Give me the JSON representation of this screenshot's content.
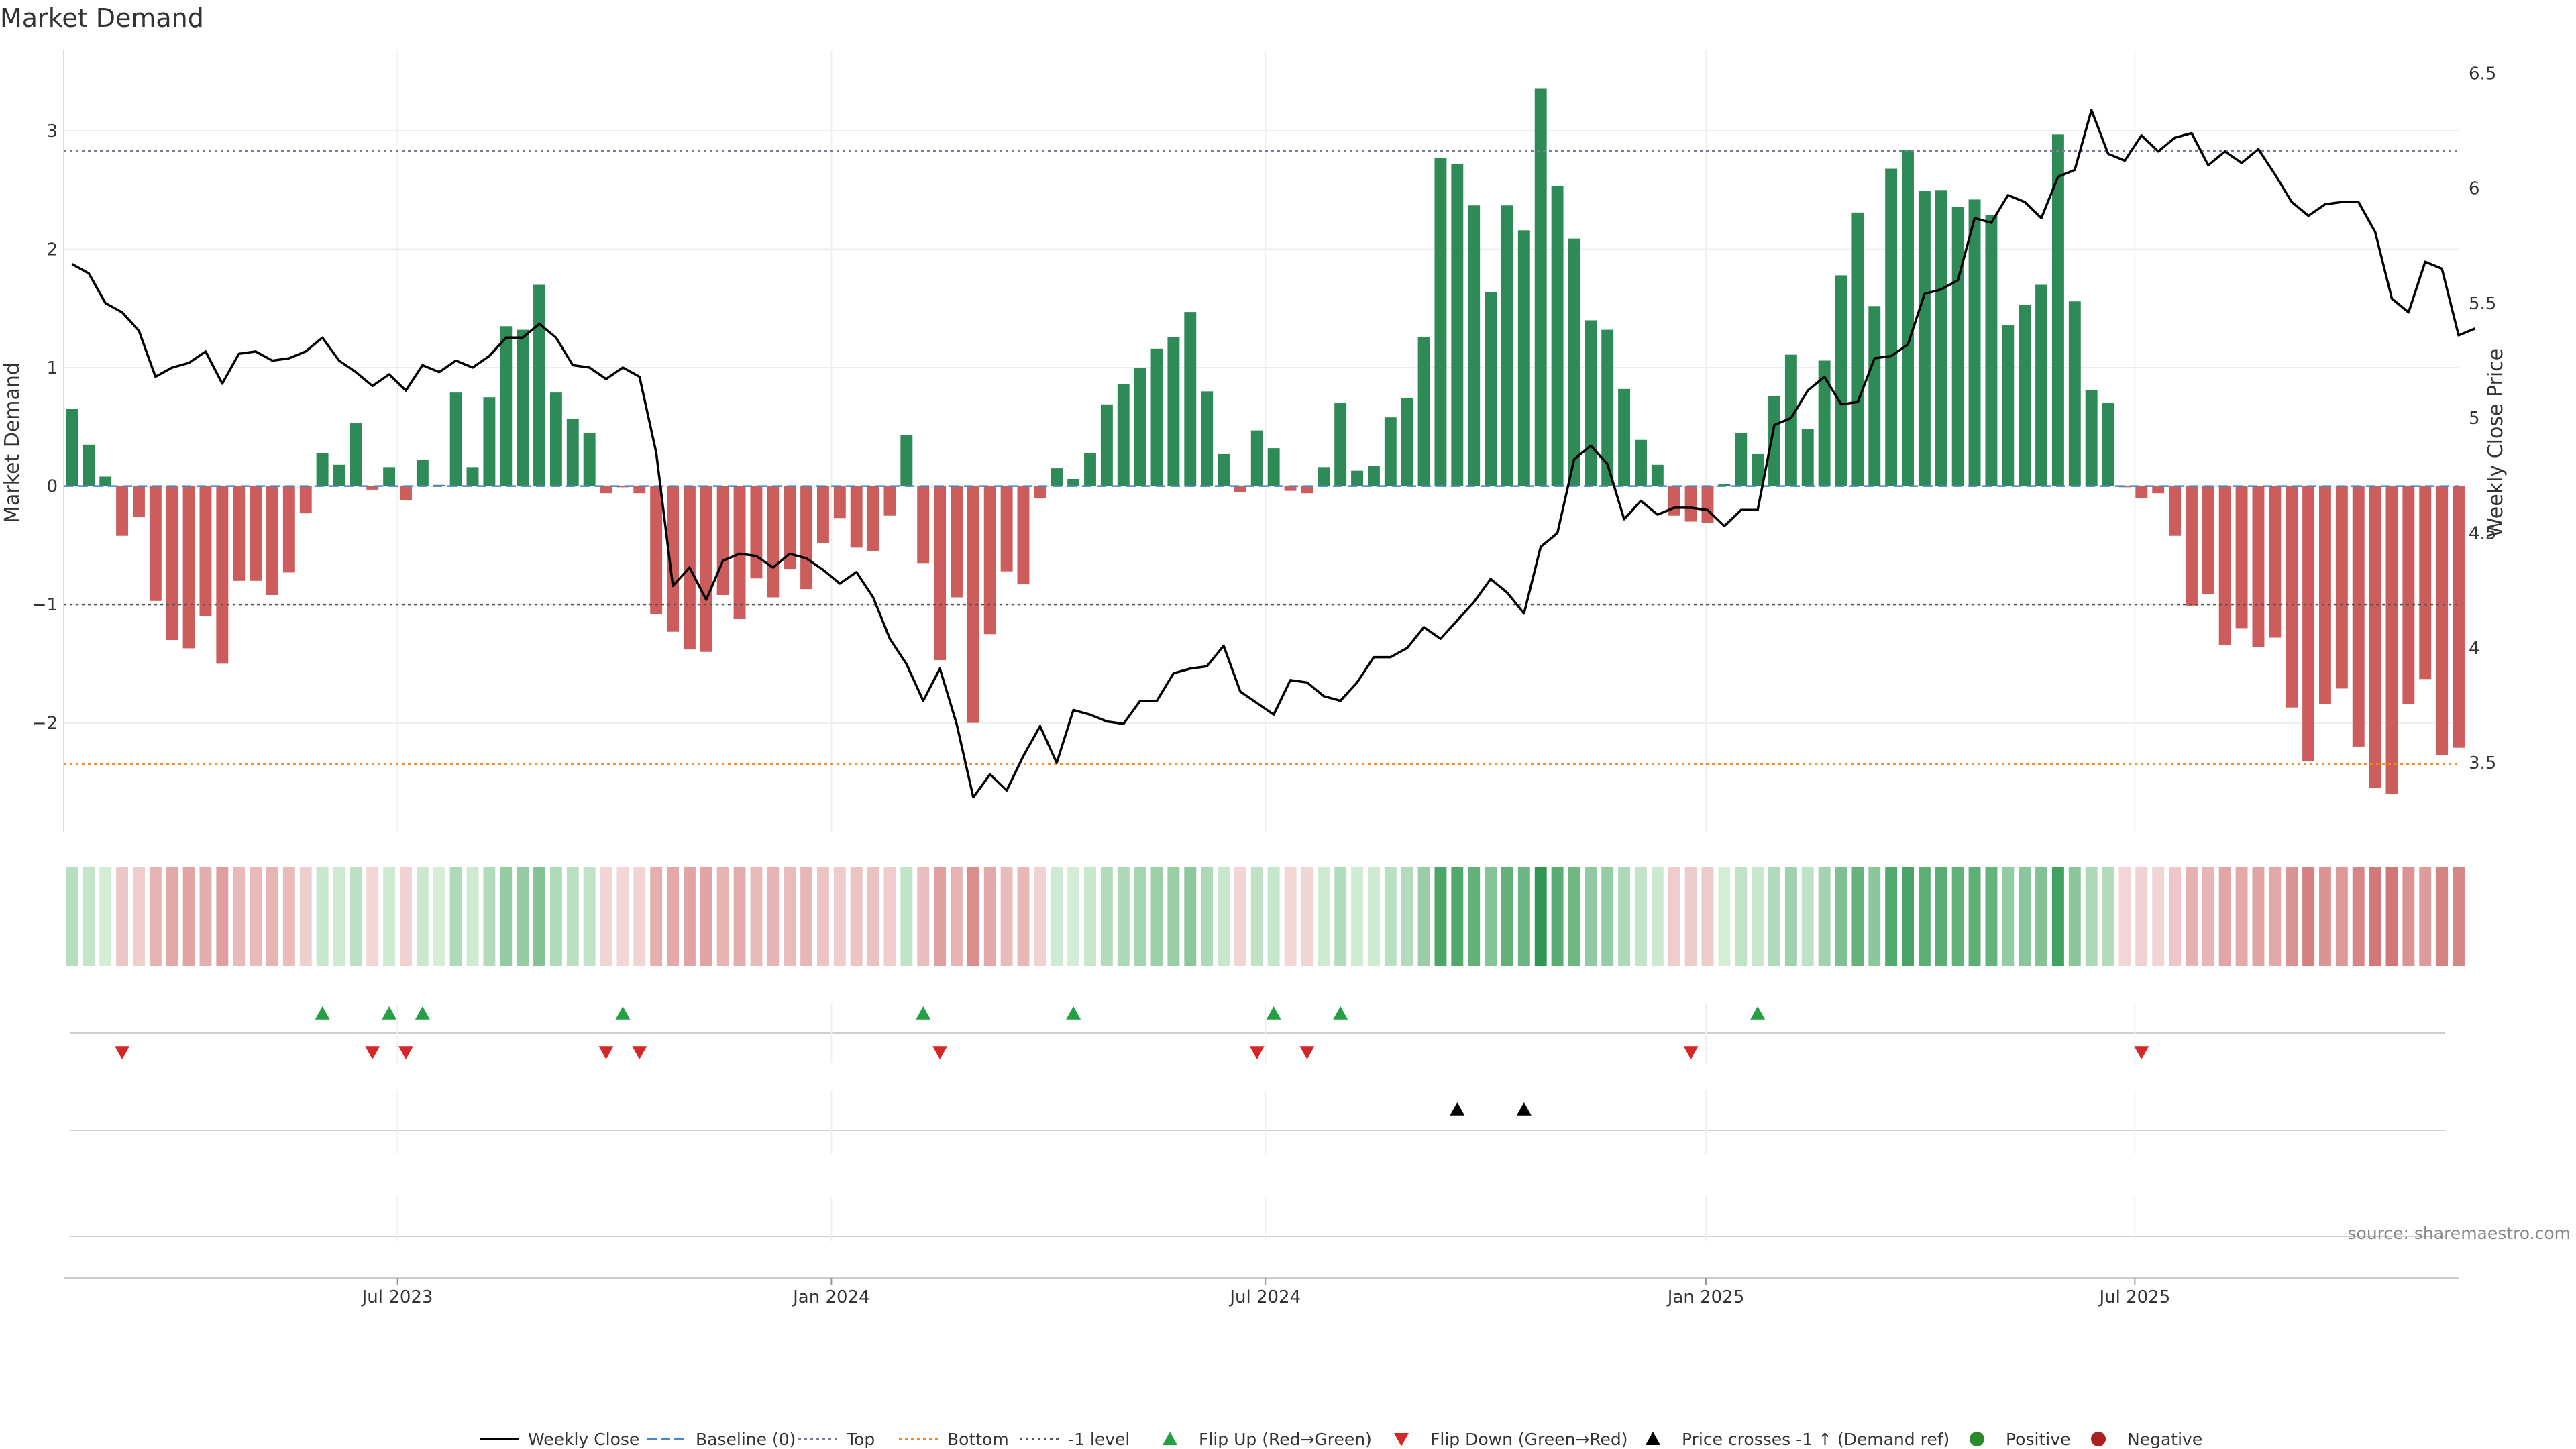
{
  "chart_data": {
    "type": "bar",
    "title": "Market Demand",
    "ylabel_left": "Market Demand",
    "ylabel_right": "Weekly Close Price",
    "source": "source: sharemaestro.com",
    "ylim_left": [
      -2.92,
      3.68
    ],
    "ylim_right": [
      3.2,
      6.6
    ],
    "yticks_left": [
      {
        "v": 3,
        "label": "3"
      },
      {
        "v": 2,
        "label": "2"
      },
      {
        "v": 1,
        "label": "1"
      },
      {
        "v": 0,
        "label": "0"
      },
      {
        "v": -1,
        "label": "−1"
      },
      {
        "v": -2,
        "label": "−2"
      }
    ],
    "yticks_right": [
      {
        "v": 6.5,
        "label": "6.5"
      },
      {
        "v": 6,
        "label": "6"
      },
      {
        "v": 5.5,
        "label": "5.5"
      },
      {
        "v": 5,
        "label": "5"
      },
      {
        "v": 4.5,
        "label": "4.5"
      },
      {
        "v": 4,
        "label": "4"
      },
      {
        "v": 3.5,
        "label": "3.5"
      }
    ],
    "x_start": 0,
    "x_end": 143.5,
    "xticks": [
      {
        "week": 20,
        "label": "Jul 2023"
      },
      {
        "week": 46,
        "label": "Jan 2024"
      },
      {
        "week": 72,
        "label": "Jul 2024"
      },
      {
        "week": 98.4,
        "label": "Jan 2025"
      },
      {
        "week": 124.1,
        "label": "Jul 2025"
      }
    ],
    "reference_lines": [
      {
        "name": "Top",
        "value": 2.83,
        "color": "#7a7a9a",
        "dash": "dotted"
      },
      {
        "name": "Bottom",
        "value": -2.35,
        "color": "#f08a24",
        "dash": "dotted"
      },
      {
        "name": "-1 level",
        "value": -1,
        "color": "#555555",
        "dash": "dotted"
      },
      {
        "name": "Baseline (0)",
        "value": 0,
        "color": "#4a86c5",
        "dash": "dashed"
      }
    ],
    "colors": {
      "positive": "#2e8b57",
      "negative": "#cd5c5c",
      "price": "#000000",
      "flip_up": "#23a043",
      "flip_down": "#d62728",
      "cross": "#000000"
    },
    "demand": [
      0.65,
      0.35,
      0.08,
      -0.42,
      -0.26,
      -0.97,
      -1.3,
      -1.37,
      -1.1,
      -1.5,
      -0.8,
      -0.8,
      -0.92,
      -0.73,
      -0.23,
      0.28,
      0.18,
      0.53,
      -0.03,
      0.16,
      -0.12,
      0.22,
      0.01,
      0.79,
      0.16,
      0.75,
      1.35,
      1.32,
      1.7,
      0.79,
      0.57,
      0.45,
      -0.06,
      -0.01,
      -0.06,
      -1.08,
      -1.23,
      -1.38,
      -1.4,
      -0.92,
      -1.12,
      -0.78,
      -0.94,
      -0.7,
      -0.87,
      -0.48,
      -0.27,
      -0.52,
      -0.55,
      -0.25,
      0.43,
      -0.65,
      -1.47,
      -0.94,
      -2.0,
      -1.25,
      -0.72,
      -0.83,
      -0.1,
      0.15,
      0.06,
      0.28,
      0.69,
      0.86,
      1.0,
      1.16,
      1.26,
      1.47,
      0.8,
      0.27,
      -0.05,
      0.47,
      0.32,
      -0.04,
      -0.06,
      0.16,
      0.7,
      0.13,
      0.17,
      0.58,
      0.74,
      1.26,
      2.77,
      2.72,
      2.37,
      1.64,
      2.37,
      2.16,
      3.36,
      2.53,
      2.09,
      1.4,
      1.32,
      0.82,
      0.39,
      0.18,
      -0.25,
      -0.3,
      -0.31,
      0.02,
      0.45,
      0.27,
      0.76,
      1.11,
      0.48,
      1.06,
      1.78,
      2.31,
      1.52,
      2.68,
      2.84,
      2.49,
      2.5,
      2.36,
      2.42,
      2.29,
      1.36,
      1.53,
      1.7,
      2.97,
      1.56,
      0.81,
      0.7,
      -0.01,
      -0.1,
      -0.06,
      -0.42,
      -1.01,
      -0.91,
      -1.34,
      -1.2,
      -1.36,
      -1.28,
      -1.87,
      -2.32,
      -1.84,
      -1.71,
      -2.2,
      -2.55,
      -2.6,
      -1.84,
      -1.63,
      -2.27,
      -2.21
    ],
    "price": [
      5.67,
      5.63,
      5.5,
      5.46,
      5.38,
      5.18,
      5.22,
      5.24,
      5.29,
      5.15,
      5.28,
      5.29,
      5.25,
      5.26,
      5.29,
      5.35,
      5.25,
      5.2,
      5.14,
      5.19,
      5.12,
      5.23,
      5.2,
      5.25,
      5.22,
      5.27,
      5.35,
      5.35,
      5.41,
      5.35,
      5.23,
      5.22,
      5.17,
      5.22,
      5.18,
      4.85,
      4.27,
      4.35,
      4.21,
      4.38,
      4.41,
      4.4,
      4.35,
      4.41,
      4.39,
      4.34,
      4.28,
      4.33,
      4.22,
      4.04,
      3.93,
      3.77,
      3.91,
      3.67,
      3.35,
      3.45,
      3.38,
      3.53,
      3.66,
      3.5,
      3.73,
      3.71,
      3.68,
      3.67,
      3.77,
      3.77,
      3.89,
      3.91,
      3.92,
      4.01,
      3.81,
      3.76,
      3.71,
      3.86,
      3.85,
      3.79,
      3.77,
      3.85,
      3.96,
      3.96,
      4.0,
      4.09,
      4.04,
      4.12,
      4.2,
      4.3,
      4.24,
      4.15,
      4.44,
      4.5,
      4.82,
      4.88,
      4.8,
      4.56,
      4.64,
      4.58,
      4.61,
      4.61,
      4.6,
      4.53,
      4.6,
      4.6,
      4.97,
      5.0,
      5.12,
      5.18,
      5.06,
      5.07,
      5.26,
      5.27,
      5.32,
      5.54,
      5.56,
      5.6,
      5.87,
      5.85,
      5.97,
      5.94,
      5.87,
      6.05,
      6.08,
      6.34,
      6.15,
      6.12,
      6.23,
      6.16,
      6.22,
      6.24,
      6.1,
      6.16,
      6.11,
      6.17,
      6.06,
      5.94,
      5.88,
      5.93,
      5.94,
      5.94,
      5.81,
      5.52,
      5.46,
      5.68,
      5.65,
      5.36,
      5.39
    ],
    "flip_up_weeks": [
      15,
      19,
      21,
      33,
      51,
      60,
      72,
      76,
      101
    ],
    "flip_down_weeks": [
      3,
      18,
      20,
      32,
      34,
      52,
      71,
      74,
      97,
      124
    ],
    "price_cross_weeks": [
      83,
      87
    ],
    "legend": [
      {
        "label": "Weekly Close",
        "kind": "line",
        "color": "#000000"
      },
      {
        "label": "Baseline (0)",
        "kind": "dashed",
        "color": "#4a86c5"
      },
      {
        "label": "Top",
        "kind": "dotted",
        "color": "#7a7a9a"
      },
      {
        "label": "Bottom",
        "kind": "dotted",
        "color": "#f08a24"
      },
      {
        "label": "-1 level",
        "kind": "dotted",
        "color": "#555555"
      },
      {
        "label": "Flip Up (Red→Green)",
        "kind": "tri-up",
        "color": "#23a043"
      },
      {
        "label": "Flip Down (Green→Red)",
        "kind": "tri-down",
        "color": "#d62728"
      },
      {
        "label": "Price crosses -1 ↑ (Demand ref)",
        "kind": "tri-up",
        "color": "#000000"
      },
      {
        "label": "Positive",
        "kind": "dot",
        "color": "#2a8a2a"
      },
      {
        "label": "Negative",
        "kind": "dot",
        "color": "#a82020"
      }
    ]
  }
}
